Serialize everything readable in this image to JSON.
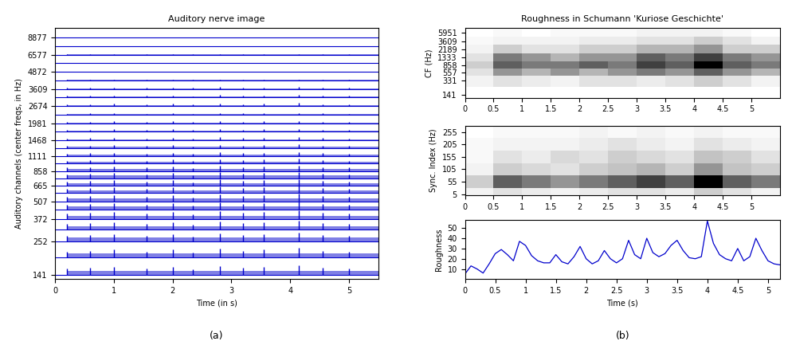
{
  "panel_labels": [
    "(a)",
    "(b)"
  ],
  "chart_data": [
    {
      "type": "waveform_stack",
      "title": "Auditory nerve image",
      "x_label": "Time (in s)",
      "y_label": "Auditory channels (center freqs, in Hz)",
      "log": "y",
      "color": "#0000cc",
      "xlim": [
        0,
        5.5
      ],
      "xticks": [
        0,
        1,
        2,
        3,
        4,
        5
      ],
      "ylim": [
        130,
        10500
      ],
      "yticks": [
        141,
        252,
        372,
        507,
        665,
        858,
        1111,
        1468,
        1981,
        2674,
        3609,
        4872,
        6577,
        8877
      ],
      "channels": [
        141,
        190,
        252,
        310,
        372,
        440,
        507,
        585,
        665,
        760,
        858,
        980,
        1111,
        1280,
        1468,
        1710,
        1981,
        2300,
        2674,
        3120,
        3609,
        4200,
        4872,
        5660,
        6577,
        7640,
        8877
      ],
      "activity": [
        1.0,
        1.0,
        0.95,
        0.9,
        0.9,
        0.85,
        0.8,
        0.75,
        0.7,
        0.65,
        0.6,
        0.5,
        0.45,
        0.4,
        0.35,
        0.3,
        0.25,
        0.2,
        0.3,
        0.25,
        0.2,
        0.1,
        0.05,
        0.05,
        0.03,
        0.02,
        0.01
      ],
      "onsets": [
        0.2,
        0.6,
        1.0,
        1.55,
        2.0,
        2.35,
        2.8,
        3.2,
        3.55,
        4.15,
        4.55,
        5.0
      ],
      "onset_strength": [
        0.6,
        0.7,
        0.8,
        0.6,
        0.8,
        0.5,
        0.9,
        0.7,
        0.8,
        1.0,
        0.7,
        0.6
      ]
    },
    {
      "type": "heatmap",
      "title": "Roughness in Schumann 'Kuriose Geschichte'",
      "y_label": "CF (Hz)",
      "log": "y",
      "xlim": [
        0,
        5.5
      ],
      "xticks": [
        0,
        0.5,
        1,
        1.5,
        2,
        2.5,
        3,
        3.5,
        4,
        4.5,
        5
      ],
      "ylim": [
        120,
        8000
      ],
      "yticks": [
        141,
        331,
        557,
        858,
        1333,
        2189,
        3609,
        5951
      ],
      "x": [
        0.25,
        0.75,
        1.25,
        1.75,
        2.25,
        2.75,
        3.25,
        3.75,
        4.25,
        4.75,
        5.25
      ],
      "y": [
        141,
        331,
        557,
        858,
        1333,
        2189,
        3609,
        5951
      ],
      "cells": [
        [
          0,
          0,
          0,
          0,
          0,
          0,
          0,
          0,
          0,
          0,
          0
        ],
        [
          0.1,
          0.2,
          0.15,
          0.1,
          0.2,
          0.2,
          0.15,
          0.2,
          0.3,
          0.2,
          0.1
        ],
        [
          0.2,
          0.5,
          0.4,
          0.5,
          0.4,
          0.5,
          0.6,
          0.5,
          0.7,
          0.5,
          0.4
        ],
        [
          0.3,
          0.7,
          0.6,
          0.6,
          0.7,
          0.6,
          0.8,
          0.7,
          1.0,
          0.7,
          0.6
        ],
        [
          0.2,
          0.6,
          0.5,
          0.4,
          0.5,
          0.5,
          0.7,
          0.6,
          0.8,
          0.6,
          0.5
        ],
        [
          0.1,
          0.3,
          0.2,
          0.2,
          0.3,
          0.3,
          0.4,
          0.4,
          0.5,
          0.3,
          0.3
        ],
        [
          0.05,
          0.1,
          0.1,
          0.1,
          0.15,
          0.15,
          0.2,
          0.2,
          0.3,
          0.2,
          0.1
        ],
        [
          0,
          0.05,
          0,
          0.05,
          0.05,
          0.05,
          0.1,
          0.1,
          0.1,
          0.05,
          0
        ]
      ]
    },
    {
      "type": "heatmap",
      "y_label": "Sync. Index (Hz)",
      "xlim": [
        0,
        5.5
      ],
      "xticks": [
        0,
        0.5,
        1,
        1.5,
        2,
        2.5,
        3,
        3.5,
        4,
        4.5,
        5
      ],
      "ylim": [
        0,
        280
      ],
      "yticks": [
        5,
        55,
        105,
        155,
        205,
        255
      ],
      "x": [
        0.25,
        0.75,
        1.25,
        1.75,
        2.25,
        2.75,
        3.25,
        3.75,
        4.25,
        4.75,
        5.25
      ],
      "y": [
        5,
        55,
        105,
        155,
        205,
        255
      ],
      "cells": [
        [
          0.1,
          0.2,
          0.15,
          0.1,
          0.15,
          0.2,
          0.2,
          0.15,
          0.3,
          0.2,
          0.1
        ],
        [
          0.3,
          0.7,
          0.6,
          0.5,
          0.6,
          0.7,
          0.8,
          0.7,
          1.0,
          0.7,
          0.6
        ],
        [
          0.1,
          0.3,
          0.25,
          0.2,
          0.3,
          0.35,
          0.4,
          0.3,
          0.5,
          0.35,
          0.3
        ],
        [
          0.05,
          0.2,
          0.15,
          0.25,
          0.2,
          0.3,
          0.25,
          0.2,
          0.35,
          0.3,
          0.2
        ],
        [
          0.05,
          0.1,
          0.1,
          0.1,
          0.15,
          0.2,
          0.15,
          0.1,
          0.2,
          0.15,
          0.1
        ],
        [
          0,
          0.05,
          0.05,
          0.05,
          0.1,
          0.05,
          0.1,
          0.05,
          0.1,
          0.05,
          0.05
        ]
      ]
    },
    {
      "type": "line",
      "x_label": "Time (s)",
      "y_label": "Roughness",
      "color": "#0000cc",
      "xlim": [
        0,
        5.2
      ],
      "xticks": [
        0,
        0.5,
        1,
        1.5,
        2,
        2.5,
        3,
        3.5,
        4,
        4.5,
        5
      ],
      "ylim": [
        0,
        58
      ],
      "yticks": [
        10,
        20,
        30,
        40,
        50
      ],
      "x": [
        0,
        0.1,
        0.2,
        0.3,
        0.4,
        0.5,
        0.6,
        0.7,
        0.8,
        0.9,
        1.0,
        1.1,
        1.2,
        1.3,
        1.4,
        1.5,
        1.6,
        1.7,
        1.8,
        1.9,
        2.0,
        2.1,
        2.2,
        2.3,
        2.4,
        2.5,
        2.6,
        2.7,
        2.8,
        2.9,
        3.0,
        3.1,
        3.2,
        3.3,
        3.4,
        3.5,
        3.6,
        3.7,
        3.8,
        3.9,
        4.0,
        4.1,
        4.2,
        4.3,
        4.4,
        4.5,
        4.6,
        4.7,
        4.8,
        4.9,
        5.0,
        5.1,
        5.2
      ],
      "values": [
        5,
        13,
        10,
        6,
        15,
        25,
        29,
        24,
        18,
        37,
        33,
        23,
        18,
        16,
        16,
        24,
        17,
        15,
        22,
        32,
        20,
        15,
        18,
        28,
        20,
        16,
        20,
        38,
        24,
        20,
        40,
        26,
        22,
        25,
        33,
        38,
        28,
        21,
        20,
        22,
        57,
        35,
        24,
        20,
        18,
        30,
        18,
        22,
        40,
        28,
        18,
        15,
        14
      ]
    }
  ]
}
